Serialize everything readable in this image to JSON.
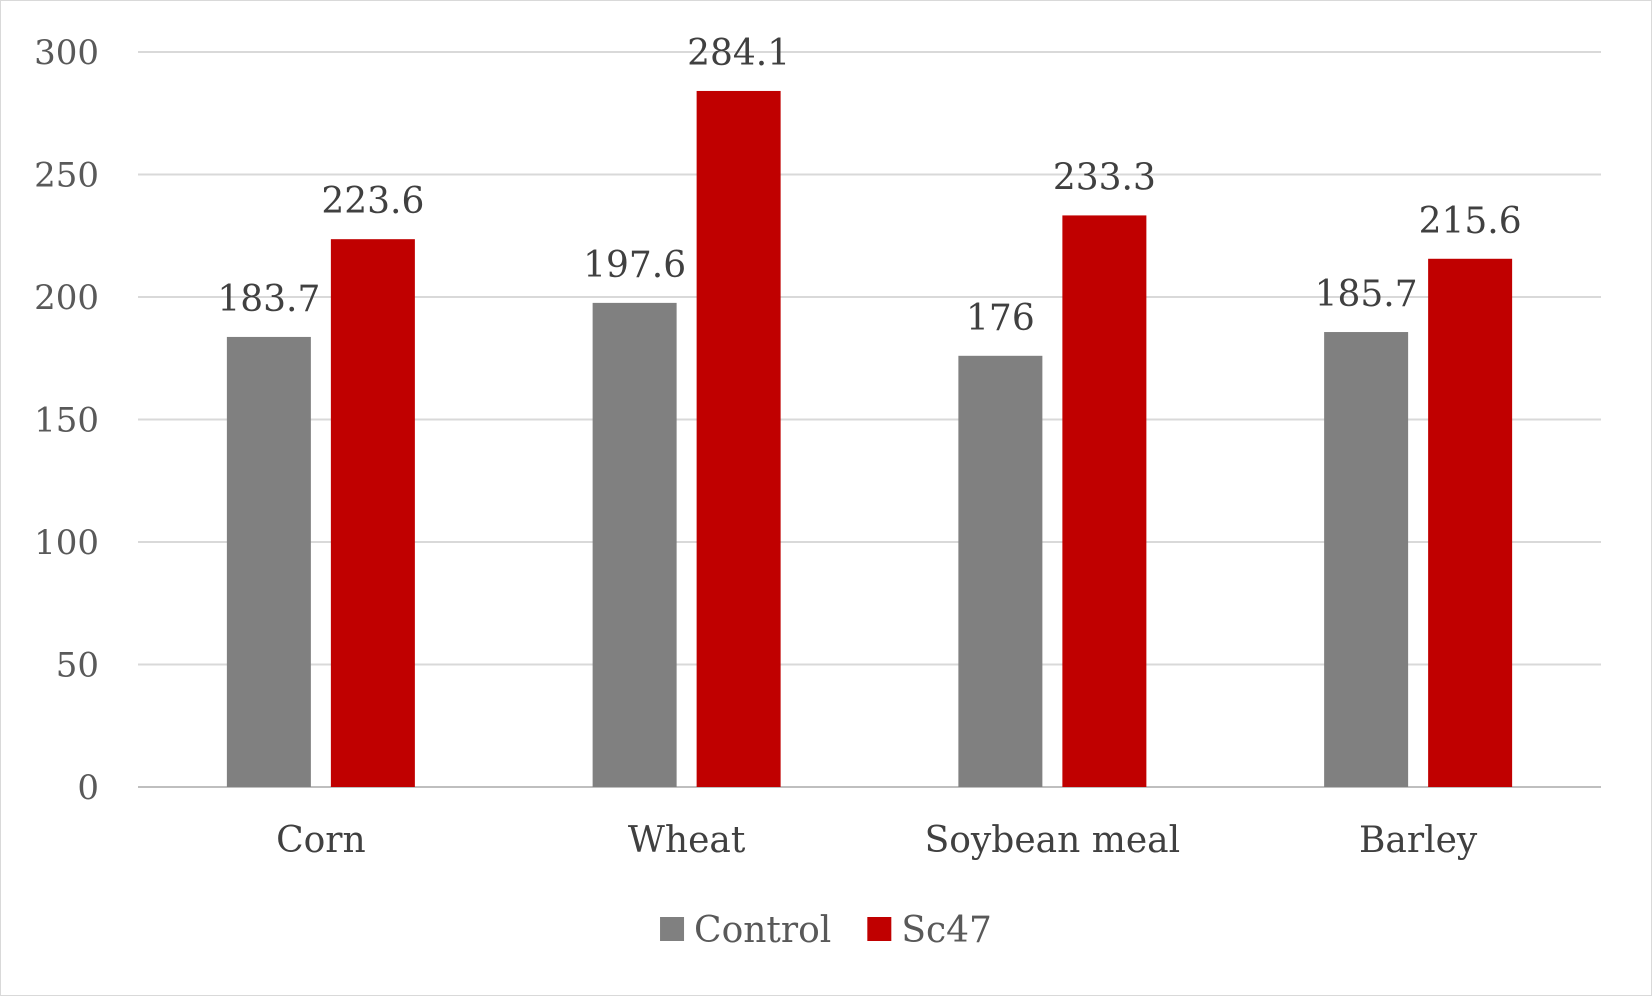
{
  "chart_data": {
    "type": "bar",
    "categories": [
      "Corn",
      "Wheat",
      "Soybean meal",
      "Barley"
    ],
    "series": [
      {
        "name": "Control",
        "values": [
          183.7,
          197.6,
          176,
          185.7
        ],
        "labels": [
          "183.7",
          "197.6",
          "176",
          "185.7"
        ],
        "color": "#808080"
      },
      {
        "name": "Sc47",
        "values": [
          223.6,
          284.1,
          233.3,
          215.6
        ],
        "labels": [
          "223.6",
          "284.1",
          "233.3",
          "215.6"
        ],
        "color": "#c00000"
      }
    ],
    "ylim": [
      0,
      300
    ],
    "yticks": [
      0,
      50,
      100,
      150,
      200,
      250,
      300
    ],
    "grid": true,
    "legend_position": "bottom",
    "title": "",
    "xlabel": "",
    "ylabel": ""
  }
}
